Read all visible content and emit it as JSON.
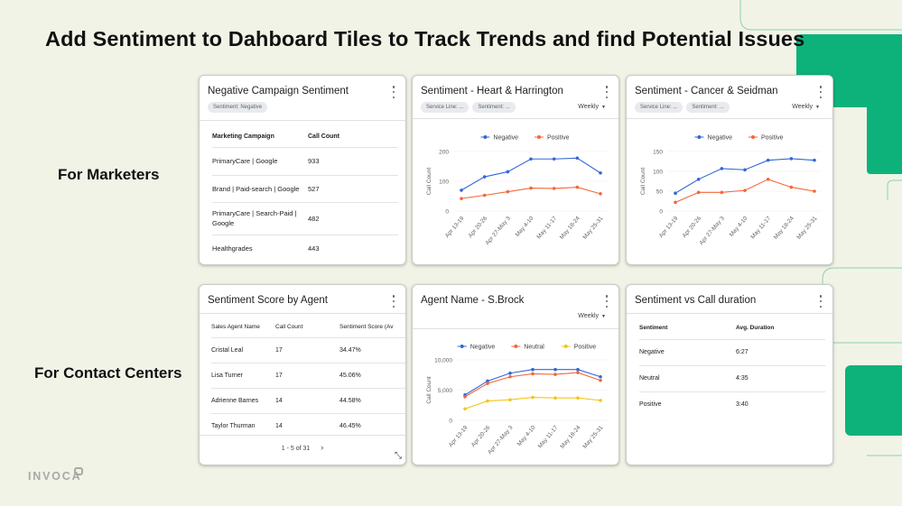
{
  "slide": {
    "title": "Add Sentiment to Dahboard Tiles to Track Trends and find Potential Issues",
    "marketers_label": "For Marketers",
    "contact_centers_label": "For Contact Centers",
    "logo_text": "INVOCA",
    "accent_color": "#0db27a",
    "line_color": "#8fd2ae"
  },
  "tiles": {
    "neg_campaign": {
      "title": "Negative Campaign Sentiment",
      "chip": "Sentiment: Negative",
      "headers": [
        "Marketing Campaign",
        "Call Count"
      ],
      "rows": [
        {
          "campaign": "PrimaryCare | Google",
          "count": "933"
        },
        {
          "campaign": "Brand | Paid-search | Google",
          "count": "527"
        },
        {
          "campaign": "PrimaryCare | Search-Paid | Google",
          "count": "482"
        },
        {
          "campaign": "Healthgrades",
          "count": "443"
        }
      ]
    },
    "heart": {
      "title": "Sentiment - Heart & Harrington",
      "chips": [
        "Service Line: ...",
        "Sentiment: ..."
      ],
      "period": "Weekly"
    },
    "cancer": {
      "title": "Sentiment - Cancer & Seidman",
      "chips": [
        "Service Line: ...",
        "Sentiment: ..."
      ],
      "period": "Weekly"
    },
    "agent_score": {
      "title": "Sentiment Score by Agent",
      "headers": [
        "Sales Agent Name",
        "Call Count",
        "Sentiment Score (Av"
      ],
      "rows": [
        {
          "name": "Cristal Leal",
          "count": "17",
          "score": "34.47%"
        },
        {
          "name": "Lisa Turner",
          "count": "17",
          "score": "45.06%"
        },
        {
          "name": "Adrienne Barnes",
          "count": "14",
          "score": "44.58%"
        },
        {
          "name": "Taylor Thurman",
          "count": "14",
          "score": "46.45%"
        }
      ],
      "pager": "1 - 5 of 31",
      "pager_next": "›"
    },
    "sbrock": {
      "title": "Agent Name - S.Brock",
      "period": "Weekly"
    },
    "duration": {
      "title": "Sentiment vs Call duration",
      "headers": [
        "Sentiment",
        "Avg. Duration"
      ],
      "rows": [
        {
          "sentiment": "Negative",
          "duration": "6:27"
        },
        {
          "sentiment": "Neutral",
          "duration": "4:35"
        },
        {
          "sentiment": "Positive",
          "duration": "3:40"
        }
      ]
    }
  },
  "chart_data": [
    {
      "type": "line",
      "title": "Sentiment - Heart & Harrington",
      "ylabel": "Call Count",
      "ylim": [
        0,
        200
      ],
      "yticks": [
        "200",
        "100",
        "0"
      ],
      "categories": [
        "Apr 13-19",
        "Apr 20-26",
        "Apr 27-May 3",
        "May 4-10",
        "May 11-17",
        "May 18-24",
        "May 25-31"
      ],
      "series": [
        {
          "name": "Negative",
          "color": "#3367d6",
          "values": [
            70,
            115,
            132,
            175,
            175,
            178,
            128
          ]
        },
        {
          "name": "Positive",
          "color": "#f2683c",
          "values": [
            42,
            53,
            65,
            77,
            76,
            80,
            58
          ]
        }
      ],
      "legend": "top"
    },
    {
      "type": "line",
      "title": "Sentiment - Cancer & Seidman",
      "ylabel": "Call Count",
      "ylim": [
        0,
        150
      ],
      "yticks": [
        "150",
        "100",
        "50",
        "0"
      ],
      "categories": [
        "Apr 13-19",
        "Apr 20-26",
        "Apr 27-May 3",
        "May 4-10",
        "May 11-17",
        "May 18-24",
        "May 25-31"
      ],
      "series": [
        {
          "name": "Negative",
          "color": "#3367d6",
          "values": [
            45,
            80,
            107,
            104,
            128,
            132,
            128
          ]
        },
        {
          "name": "Positive",
          "color": "#f2683c",
          "values": [
            22,
            47,
            47,
            52,
            80,
            60,
            50
          ]
        }
      ],
      "legend": "top"
    },
    {
      "type": "line",
      "title": "Agent Name - S.Brock",
      "ylabel": "Call Count",
      "ylim": [
        0,
        10000
      ],
      "yticks": [
        "10,000",
        "5,000",
        "0"
      ],
      "categories": [
        "Apr 13-19",
        "Apr 20-26",
        "Apr 27-May 3",
        "May 4-10",
        "May 11-17",
        "May 18-24",
        "May 25-31"
      ],
      "series": [
        {
          "name": "Negative",
          "color": "#3367d6",
          "values": [
            4200,
            6500,
            7800,
            8400,
            8400,
            8400,
            7200
          ]
        },
        {
          "name": "Neutral",
          "color": "#f2683c",
          "values": [
            3900,
            6100,
            7200,
            7700,
            7600,
            7900,
            6600
          ]
        },
        {
          "name": "Positive",
          "color": "#f5c518",
          "values": [
            1900,
            3200,
            3400,
            3800,
            3700,
            3700,
            3300
          ]
        }
      ],
      "legend": "top"
    }
  ]
}
